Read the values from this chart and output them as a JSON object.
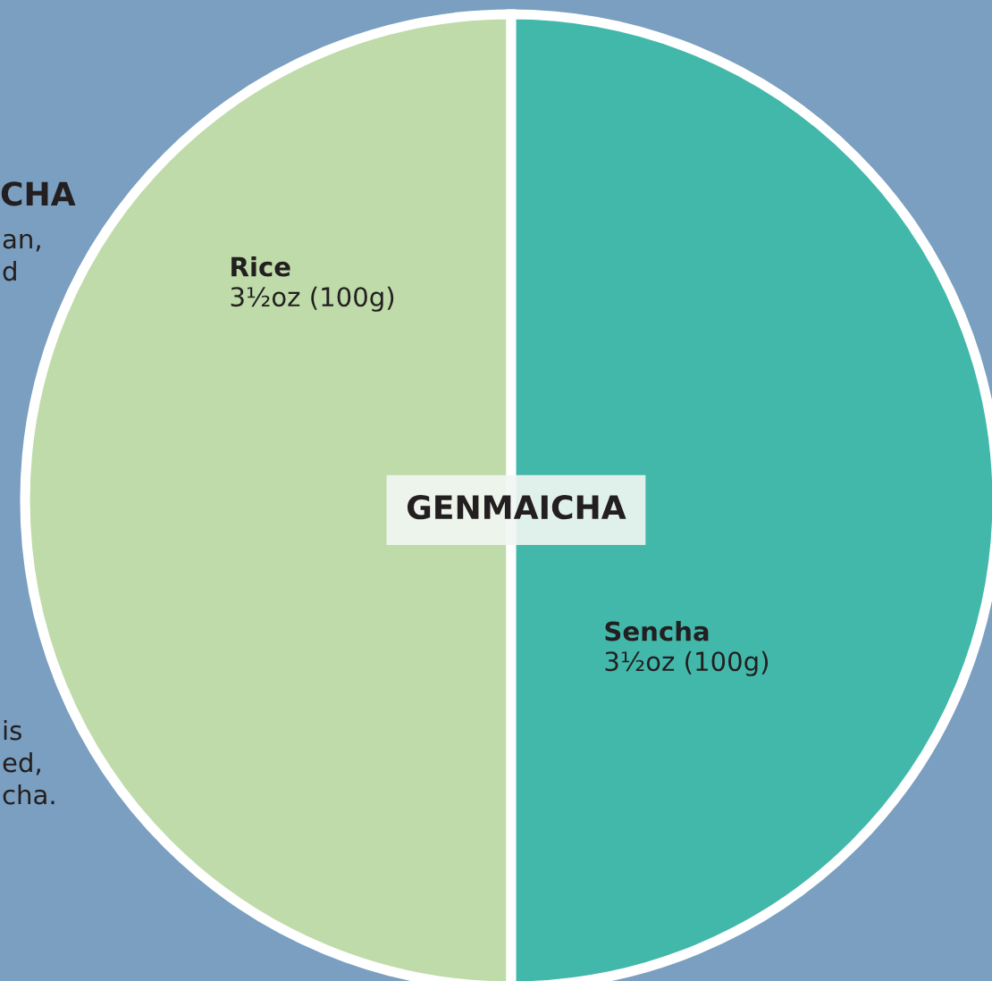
{
  "chart_data": {
    "type": "pie",
    "title": "GENMAICHA",
    "categories": [
      "Rice",
      "Sencha"
    ],
    "values": [
      100,
      100
    ],
    "value_labels": [
      "3½oz (100g)",
      "3½oz (100g)"
    ],
    "colors": [
      "#bedba9",
      "#42b8ab"
    ],
    "annotations": [
      "CHA",
      "an,",
      "d",
      "is",
      "ed,",
      "cha."
    ]
  }
}
